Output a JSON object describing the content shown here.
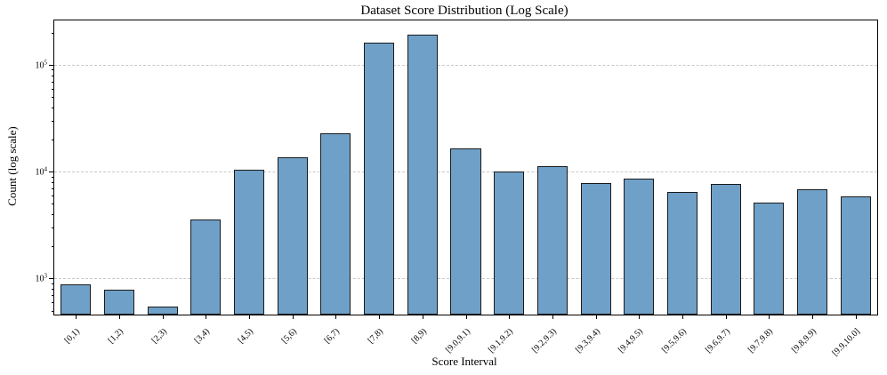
{
  "chart_data": {
    "type": "bar",
    "title": "Dataset Score Distribution (Log Scale)",
    "xlabel": "Score Interval",
    "ylabel": "Count (log scale)",
    "categories": [
      "[0,1)",
      "[1,2)",
      "[2,3)",
      "[3,4)",
      "[4,5)",
      "[5,6)",
      "[6,7)",
      "[7,8)",
      "[8,9)",
      "[9.0,9.1)",
      "[9.1,9.2)",
      "[9.2,9.3)",
      "[9.3,9.4)",
      "[9.4,9.5)",
      "[9.5,9.6)",
      "[9.6,9.7)",
      "[9.7,9.8)",
      "[9.8,9.9)",
      "[9.9,10.0]"
    ],
    "values": [
      880,
      780,
      550,
      3600,
      10500,
      13500,
      23000,
      160000,
      190000,
      16500,
      10000,
      11200,
      7800,
      8600,
      6400,
      7700,
      5100,
      6800,
      5900
    ],
    "ylim": [
      460,
      260000
    ],
    "ytick_exponents": [
      3,
      4,
      5
    ],
    "grid": "dashed horizontal at major log ticks",
    "legend": "none",
    "bar_color": "#6fa0c8",
    "bar_edge_color": "#1a1a1a",
    "grid_color": "#c8c8c8",
    "background": "#ffffff"
  }
}
